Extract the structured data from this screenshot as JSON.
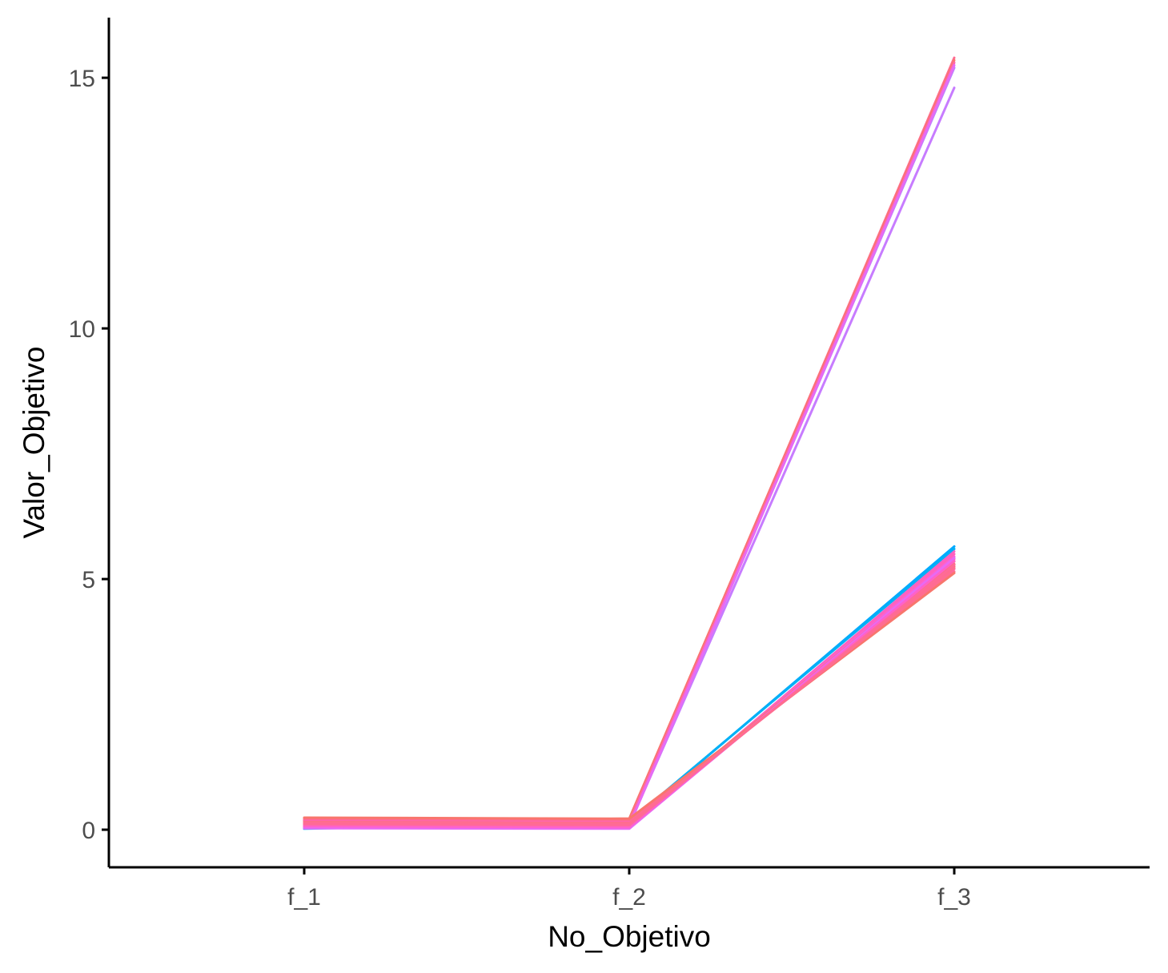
{
  "chart_data": {
    "type": "line",
    "xlabel": "No_Objetivo",
    "ylabel": "Valor_Objetivo",
    "categories": [
      "f_1",
      "f_2",
      "f_3"
    ],
    "ylim": [
      -0.75,
      16.2
    ],
    "yticks": [
      0,
      5,
      10,
      15
    ],
    "grid": false,
    "legend": "none",
    "series": [
      {
        "color": "#C77CFF",
        "values": [
          0.05,
          0.1,
          14.8
        ]
      },
      {
        "color": "#B983FF",
        "values": [
          0.08,
          0.12,
          15.2
        ]
      },
      {
        "color": "#FF6C91",
        "values": [
          0.15,
          0.2,
          15.4
        ]
      },
      {
        "color": "#F8766D",
        "values": [
          0.18,
          0.22,
          15.35
        ]
      },
      {
        "color": "#FF66A8",
        "values": [
          0.1,
          0.15,
          15.3
        ]
      },
      {
        "color": "#E76BF3",
        "values": [
          0.06,
          0.08,
          15.25
        ]
      },
      {
        "color": "#00A9FF",
        "values": [
          0.02,
          0.14,
          5.65
        ]
      },
      {
        "color": "#00B0F6",
        "values": [
          0.04,
          0.16,
          5.6
        ]
      },
      {
        "color": "#FF61C3",
        "values": [
          0.05,
          0.04,
          5.55
        ]
      },
      {
        "color": "#FF62BC",
        "values": [
          0.08,
          0.06,
          5.5
        ]
      },
      {
        "color": "#FD61D1",
        "values": [
          0.1,
          0.08,
          5.45
        ]
      },
      {
        "color": "#FF6A98",
        "values": [
          0.12,
          0.1,
          5.4
        ]
      },
      {
        "color": "#FF6C91",
        "values": [
          0.14,
          0.12,
          5.35
        ]
      },
      {
        "color": "#FC717F",
        "values": [
          0.16,
          0.14,
          5.3
        ]
      },
      {
        "color": "#F8766D",
        "values": [
          0.18,
          0.16,
          5.25
        ]
      },
      {
        "color": "#FF65AE",
        "values": [
          0.2,
          0.18,
          5.2
        ]
      },
      {
        "color": "#FF6C91",
        "values": [
          0.22,
          0.2,
          5.15
        ]
      },
      {
        "color": "#F8766D",
        "values": [
          0.24,
          0.22,
          5.12
        ]
      },
      {
        "color": "#E76BF3",
        "values": [
          0.03,
          0.02,
          5.42
        ]
      },
      {
        "color": "#FF61C9",
        "values": [
          0.07,
          0.05,
          5.36
        ]
      },
      {
        "color": "#FF6A98",
        "values": [
          0.11,
          0.09,
          5.28
        ]
      },
      {
        "color": "#FF6C91",
        "values": [
          0.15,
          0.13,
          5.22
        ]
      }
    ]
  }
}
